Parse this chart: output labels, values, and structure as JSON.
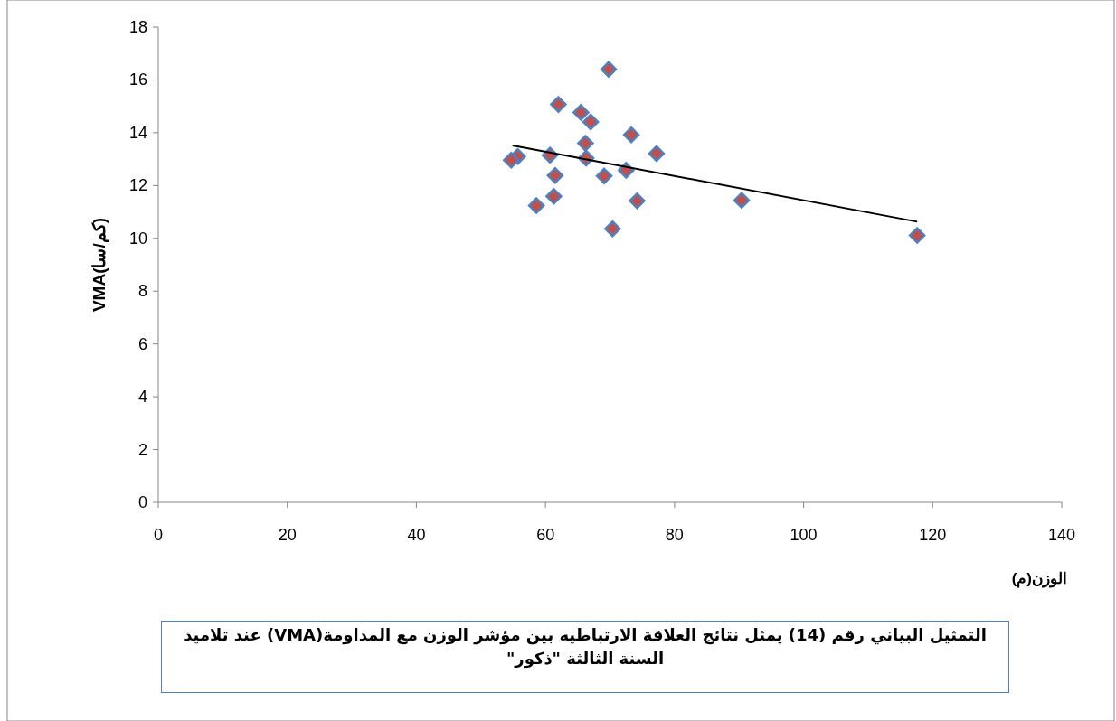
{
  "chart_data": {
    "type": "scatter",
    "title": "التمثيل البياني رقم (14) يمثل نتائج العلاقة الارتباطيه بين مؤشر الوزن مع المداومة(VMA) عند تلاميذ السنة الثالثة \"ذكور\"",
    "xlabel": "الوزن(م)",
    "ylabel": "VMA(كم/سا)",
    "xlim": [
      0,
      140
    ],
    "xticks": [
      0,
      20,
      40,
      60,
      80,
      100,
      120,
      140
    ],
    "ylim": [
      0,
      18
    ],
    "yticks": [
      0,
      2,
      4,
      6,
      8,
      10,
      12,
      14,
      16,
      18
    ],
    "grid": false,
    "series": [
      {
        "marker": "diamond",
        "color": "#c0504d",
        "x": [
          69.8,
          62.0,
          65.5,
          67.0,
          73.3,
          66.2,
          77.2,
          55.7,
          54.7,
          60.7,
          66.3,
          72.5,
          61.5,
          69.1,
          61.3,
          74.2,
          58.6,
          70.4,
          90.4,
          117.6
        ],
        "values": [
          16.4,
          15.07,
          14.77,
          14.41,
          13.92,
          13.6,
          13.21,
          13.1,
          12.96,
          13.15,
          13.04,
          12.58,
          12.38,
          12.36,
          11.59,
          11.42,
          11.24,
          10.36,
          11.44,
          10.11
        ]
      },
      {
        "type": "line",
        "color": "#000000",
        "x": [
          54.9,
          117.6
        ],
        "values": [
          13.52,
          10.63
        ]
      }
    ]
  }
}
